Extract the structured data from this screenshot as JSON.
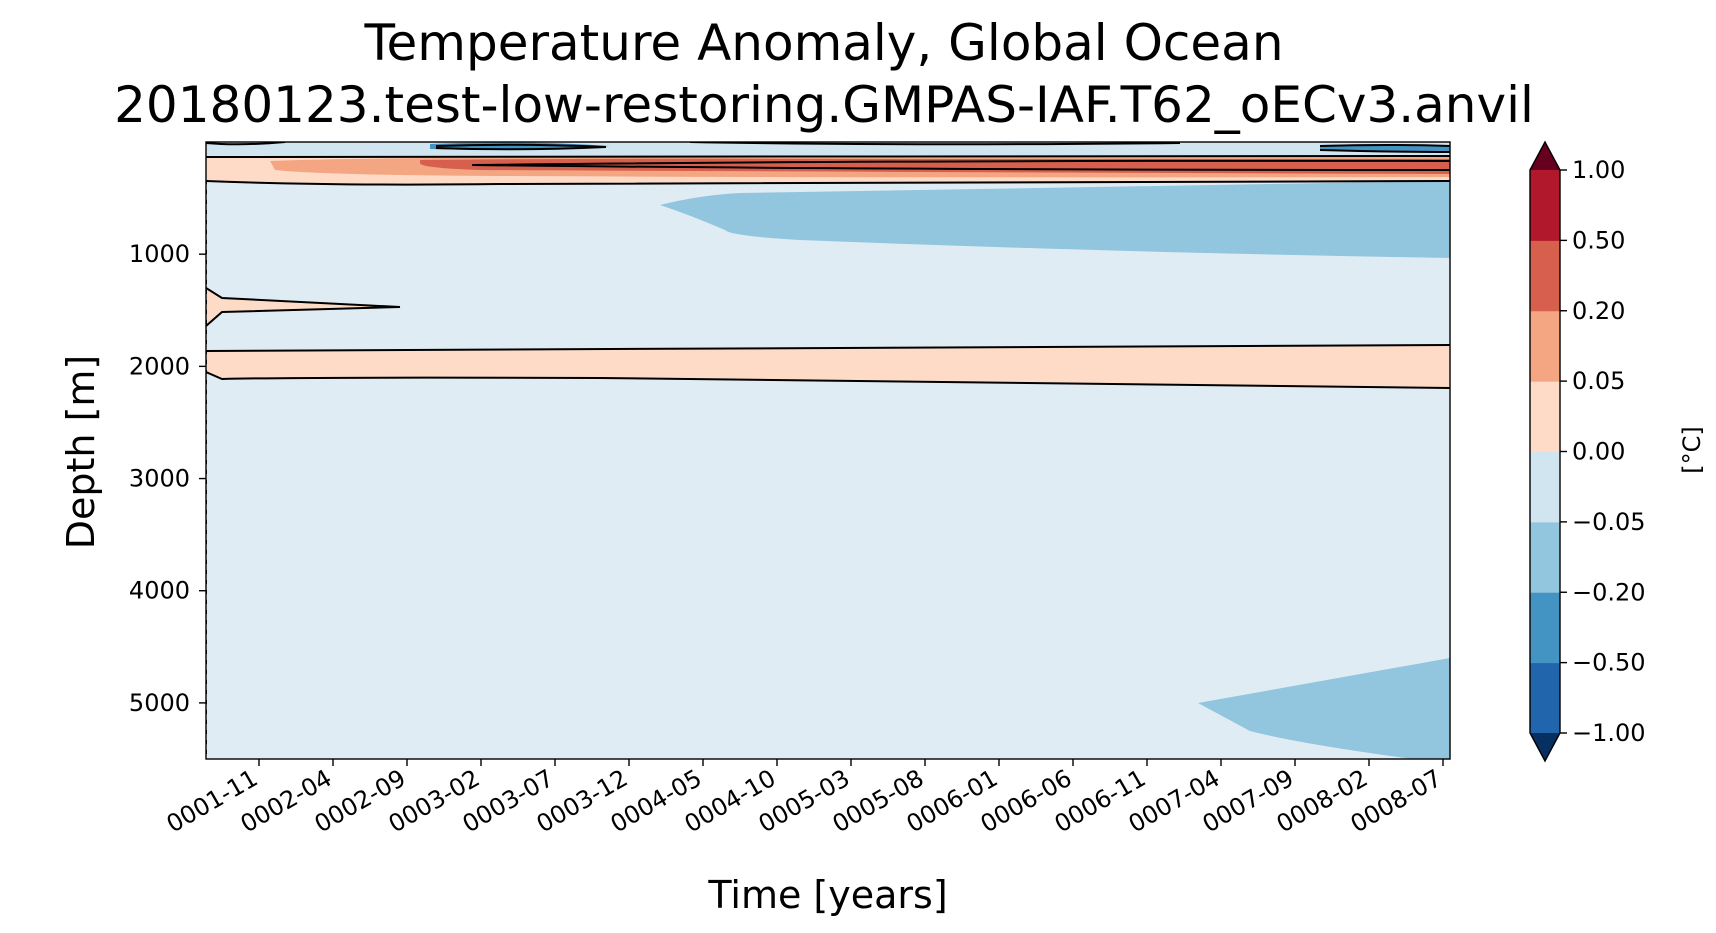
{
  "chart_data": {
    "type": "contour",
    "title": "Temperature Anomaly, Global Ocean",
    "subtitle": "20180123.test-low-restoring.GMPAS-IAF.T62_oECv3.anvil",
    "xlabel": "Time [years]",
    "ylabel": "Depth [m]",
    "x_tick_labels": [
      "0001-11",
      "0002-04",
      "0002-09",
      "0003-02",
      "0003-07",
      "0003-12",
      "0004-05",
      "0004-10",
      "0005-03",
      "0005-08",
      "0006-01",
      "0006-06",
      "0006-11",
      "0007-04",
      "0007-09",
      "0008-02",
      "0008-07"
    ],
    "y_ticks": [
      1000,
      2000,
      3000,
      4000,
      5000
    ],
    "y_tick_labels": [
      "1000",
      "2000",
      "3000",
      "4000",
      "5000"
    ],
    "ylim": [
      5500,
      0
    ],
    "xlim": [
      "0001-07",
      "0008-07"
    ],
    "grid": false,
    "colorbar": {
      "label": "[$^\\circ$C]",
      "label_display": "[°C]",
      "levels": [
        -1.0,
        -0.5,
        -0.2,
        -0.05,
        0.0,
        0.05,
        0.2,
        0.5,
        1.0
      ],
      "tick_labels": [
        "1.00",
        "0.50",
        "0.20",
        "0.05",
        "0.00",
        "−0.05",
        "−0.20",
        "−0.50",
        "−1.00"
      ],
      "colors": [
        "#2166ac",
        "#4393c3",
        "#92c5de",
        "#d1e5f0",
        "#fddbc7",
        "#f4a582",
        "#d6604d",
        "#b2182b"
      ],
      "under_color": "#053061",
      "over_color": "#67001f",
      "extend": "both"
    },
    "background_color": "#e0ecf4",
    "features": [
      {
        "name": "surface cool band",
        "sign": "negative",
        "depth_range": [
          0,
          100
        ]
      },
      {
        "name": "warm layer near 200 m",
        "sign": "positive",
        "depth_range": [
          100,
          380
        ],
        "peak_range": "0.20-0.50"
      },
      {
        "name": "cool layer 500-1000 m",
        "sign": "negative",
        "range": "-0.20 to -0.05",
        "time_start": "0004-02"
      },
      {
        "name": "warm intrusion near 1500 m",
        "sign": "positive",
        "time_range": [
          "0001-07",
          "0002-09"
        ]
      },
      {
        "name": "warm band near 2000 m",
        "sign": "positive",
        "range": "0.00 to 0.05"
      },
      {
        "name": "deep cool wedge near 5000 m",
        "sign": "negative",
        "time_start": "0007-02"
      }
    ]
  }
}
